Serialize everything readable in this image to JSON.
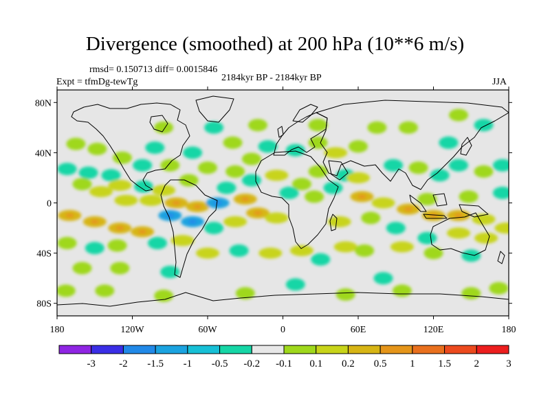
{
  "title": "Divergence (smoothed) at 200 hPa (10**6 m/s)",
  "stats": "rmsd= 0.150713 diff= 0.0015846",
  "period": "2184kyr BP - 2184kyr BP",
  "experiment": "Expt = tfmDg-tewTg",
  "season": "JJA",
  "map": {
    "lon_range": [
      -180,
      180
    ],
    "lat_range": [
      -90,
      90
    ],
    "lat_ticks": [
      {
        "value": 80,
        "label": "80N"
      },
      {
        "value": 40,
        "label": "40N"
      },
      {
        "value": 0,
        "label": "0"
      },
      {
        "value": -40,
        "label": "40S"
      },
      {
        "value": -80,
        "label": "80S"
      }
    ],
    "lon_ticks": [
      {
        "value": -180,
        "label": "180"
      },
      {
        "value": -120,
        "label": "120W"
      },
      {
        "value": -60,
        "label": "60W"
      },
      {
        "value": 0,
        "label": "0"
      },
      {
        "value": 60,
        "label": "60E"
      },
      {
        "value": 120,
        "label": "120E"
      },
      {
        "value": 180,
        "label": "180"
      }
    ],
    "background_color": "#e6e6e6"
  },
  "colorbar": {
    "colors": [
      "#8f25e3",
      "#3a2ee6",
      "#2189e8",
      "#1ba3e0",
      "#17c0d6",
      "#16d6a6",
      "#e8e8e8",
      "#9fd81c",
      "#c8d41a",
      "#d7b515",
      "#e5951a",
      "#e9701e",
      "#ec4a1e",
      "#ec1e1e"
    ],
    "labels": [
      "-3",
      "-2",
      "-1.5",
      "-1",
      "-0.5",
      "-0.2",
      "-0.1",
      "0.1",
      "0.2",
      "0.5",
      "1",
      "1.5",
      "2",
      "3"
    ]
  },
  "anomalies": [
    {
      "lon": -165,
      "lat": 47,
      "v": 1
    },
    {
      "lon": -148,
      "lat": 43,
      "v": 1
    },
    {
      "lon": -172,
      "lat": 27,
      "v": -1
    },
    {
      "lon": -155,
      "lat": 24,
      "v": -1
    },
    {
      "lon": -137,
      "lat": 22,
      "v": -1
    },
    {
      "lon": -160,
      "lat": 15,
      "v": 1
    },
    {
      "lon": -145,
      "lat": 9,
      "v": 2
    },
    {
      "lon": -130,
      "lat": 14,
      "v": 2
    },
    {
      "lon": -111,
      "lat": 13,
      "v": -1
    },
    {
      "lon": -95,
      "lat": 10,
      "v": 2
    },
    {
      "lon": -125,
      "lat": 2,
      "v": 2
    },
    {
      "lon": -105,
      "lat": 2,
      "v": 2
    },
    {
      "lon": -85,
      "lat": 0,
      "v": 3
    },
    {
      "lon": -68,
      "lat": -3,
      "v": 3
    },
    {
      "lon": -52,
      "lat": 0,
      "v": -2
    },
    {
      "lon": -30,
      "lat": 3,
      "v": 3
    },
    {
      "lon": -170,
      "lat": -10,
      "v": 3
    },
    {
      "lon": -150,
      "lat": -15,
      "v": 3
    },
    {
      "lon": -130,
      "lat": -20,
      "v": 3
    },
    {
      "lon": -112,
      "lat": -23,
      "v": 3
    },
    {
      "lon": -90,
      "lat": -10,
      "v": -2
    },
    {
      "lon": -72,
      "lat": -15,
      "v": -2
    },
    {
      "lon": -55,
      "lat": -20,
      "v": -1
    },
    {
      "lon": -38,
      "lat": -15,
      "v": 2
    },
    {
      "lon": -20,
      "lat": -8,
      "v": 3
    },
    {
      "lon": -5,
      "lat": -12,
      "v": 2
    },
    {
      "lon": -172,
      "lat": -32,
      "v": 1
    },
    {
      "lon": -150,
      "lat": -36,
      "v": -1
    },
    {
      "lon": -132,
      "lat": -34,
      "v": 1
    },
    {
      "lon": -100,
      "lat": -32,
      "v": -1
    },
    {
      "lon": -80,
      "lat": -30,
      "v": 2
    },
    {
      "lon": -60,
      "lat": -40,
      "v": 2
    },
    {
      "lon": -35,
      "lat": -38,
      "v": -1
    },
    {
      "lon": -10,
      "lat": -40,
      "v": 2
    },
    {
      "lon": 15,
      "lat": -38,
      "v": 2
    },
    {
      "lon": 30,
      "lat": -45,
      "v": -1
    },
    {
      "lon": 50,
      "lat": -35,
      "v": 2
    },
    {
      "lon": 65,
      "lat": -38,
      "v": 1
    },
    {
      "lon": -160,
      "lat": -52,
      "v": 1
    },
    {
      "lon": -130,
      "lat": -52,
      "v": 1
    },
    {
      "lon": -90,
      "lat": -55,
      "v": -1
    },
    {
      "lon": -173,
      "lat": -70,
      "v": 1
    },
    {
      "lon": -142,
      "lat": -70,
      "v": 1
    },
    {
      "lon": -95,
      "lat": -74,
      "v": 1
    },
    {
      "lon": -30,
      "lat": -72,
      "v": 1
    },
    {
      "lon": 50,
      "lat": -73,
      "v": 1
    },
    {
      "lon": 95,
      "lat": -70,
      "v": 1
    },
    {
      "lon": 150,
      "lat": -72,
      "v": 1
    },
    {
      "lon": 172,
      "lat": -68,
      "v": 1
    },
    {
      "lon": 10,
      "lat": -65,
      "v": -1
    },
    {
      "lon": 80,
      "lat": -60,
      "v": -1
    },
    {
      "lon": 100,
      "lat": -5,
      "v": 3
    },
    {
      "lon": 120,
      "lat": -10,
      "v": 3
    },
    {
      "lon": 140,
      "lat": -10,
      "v": 3
    },
    {
      "lon": 160,
      "lat": -13,
      "v": 2
    },
    {
      "lon": 115,
      "lat": 3,
      "v": 1
    },
    {
      "lon": 148,
      "lat": 5,
      "v": 1
    },
    {
      "lon": 175,
      "lat": 8,
      "v": -1
    },
    {
      "lon": 90,
      "lat": -20,
      "v": -1
    },
    {
      "lon": 115,
      "lat": -28,
      "v": -1
    },
    {
      "lon": 140,
      "lat": -24,
      "v": 2
    },
    {
      "lon": 162,
      "lat": -28,
      "v": 2
    },
    {
      "lon": 178,
      "lat": -20,
      "v": 2
    },
    {
      "lon": 95,
      "lat": -35,
      "v": 2
    },
    {
      "lon": 120,
      "lat": -40,
      "v": 1
    },
    {
      "lon": 150,
      "lat": -42,
      "v": -1
    },
    {
      "lon": 63,
      "lat": 5,
      "v": 3
    },
    {
      "lon": 80,
      "lat": 0,
      "v": 2
    },
    {
      "lon": 45,
      "lat": -15,
      "v": 2
    },
    {
      "lon": 70,
      "lat": -12,
      "v": 1
    },
    {
      "lon": 88,
      "lat": 30,
      "v": -1
    },
    {
      "lon": 108,
      "lat": 28,
      "v": 1
    },
    {
      "lon": 125,
      "lat": 22,
      "v": -1
    },
    {
      "lon": 140,
      "lat": 30,
      "v": -1
    },
    {
      "lon": 160,
      "lat": 25,
      "v": 1
    },
    {
      "lon": 175,
      "lat": 30,
      "v": -1
    },
    {
      "lon": 50,
      "lat": 22,
      "v": -1
    },
    {
      "lon": 60,
      "lat": 20,
      "v": 2
    },
    {
      "lon": 40,
      "lat": 12,
      "v": -1
    },
    {
      "lon": 25,
      "lat": 5,
      "v": 1
    },
    {
      "lon": 15,
      "lat": 15,
      "v": 1
    },
    {
      "lon": 5,
      "lat": 8,
      "v": -1
    },
    {
      "lon": 28,
      "lat": 25,
      "v": 1
    },
    {
      "lon": -5,
      "lat": 22,
      "v": 2
    },
    {
      "lon": -25,
      "lat": 18,
      "v": -1
    },
    {
      "lon": -45,
      "lat": 12,
      "v": -1
    },
    {
      "lon": -38,
      "lat": 25,
      "v": 1
    },
    {
      "lon": -75,
      "lat": 18,
      "v": 1
    },
    {
      "lon": -72,
      "lat": 40,
      "v": -1
    },
    {
      "lon": -60,
      "lat": 28,
      "v": 1
    },
    {
      "lon": -90,
      "lat": 30,
      "v": 1
    },
    {
      "lon": -112,
      "lat": 30,
      "v": -1
    },
    {
      "lon": -128,
      "lat": 36,
      "v": 1
    },
    {
      "lon": -102,
      "lat": 44,
      "v": -1
    },
    {
      "lon": -40,
      "lat": 48,
      "v": 1
    },
    {
      "lon": -25,
      "lat": 35,
      "v": 1
    },
    {
      "lon": -12,
      "lat": 45,
      "v": -1
    },
    {
      "lon": 10,
      "lat": 42,
      "v": -1
    },
    {
      "lon": 28,
      "lat": 48,
      "v": 1
    },
    {
      "lon": 42,
      "lat": 40,
      "v": 2
    },
    {
      "lon": 60,
      "lat": 45,
      "v": 1
    },
    {
      "lon": 75,
      "lat": 60,
      "v": 1
    },
    {
      "lon": 100,
      "lat": 60,
      "v": 1
    },
    {
      "lon": 132,
      "lat": 48,
      "v": -1
    },
    {
      "lon": 28,
      "lat": 62,
      "v": 1
    },
    {
      "lon": -20,
      "lat": 62,
      "v": 1
    },
    {
      "lon": -55,
      "lat": 60,
      "v": -1
    },
    {
      "lon": -95,
      "lat": 60,
      "v": 1
    },
    {
      "lon": 160,
      "lat": 62,
      "v": -1
    },
    {
      "lon": 140,
      "lat": 70,
      "v": 1
    }
  ]
}
